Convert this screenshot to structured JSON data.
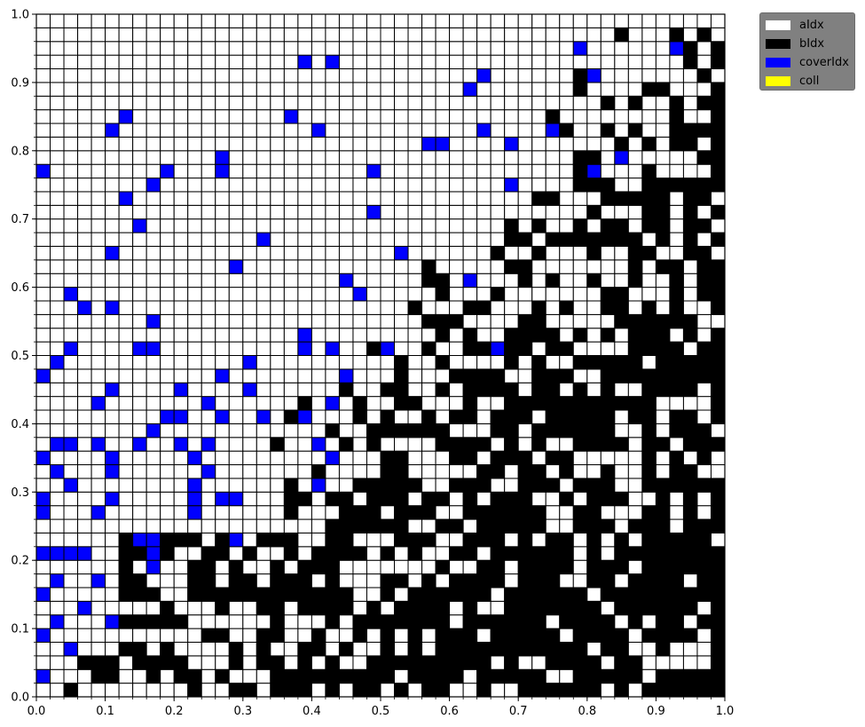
{
  "chart_data": {
    "type": "heatmap",
    "title": "",
    "xlabel": "",
    "ylabel": "",
    "xlim": [
      0,
      1
    ],
    "ylim": [
      0,
      1
    ],
    "grid_size": 50,
    "x_ticks": [
      "0.0",
      "0.1",
      "0.2",
      "0.3",
      "0.4",
      "0.5",
      "0.6",
      "0.7",
      "0.8",
      "0.9",
      "1.0"
    ],
    "y_ticks": [
      "0.0",
      "0.1",
      "0.2",
      "0.3",
      "0.4",
      "0.5",
      "0.6",
      "0.7",
      "0.8",
      "0.9",
      "1.0"
    ],
    "legend_position": "upper-right outside",
    "categories": [
      {
        "key": "a",
        "label": "aIdx",
        "color": "#ffffff"
      },
      {
        "key": "b",
        "label": "bIdx",
        "color": "#000000"
      },
      {
        "key": "c",
        "label": "coverIdx",
        "color": "#0000ff"
      },
      {
        "key": "y",
        "label": "coll",
        "color": "#ffff00"
      }
    ],
    "grid_legend": "rows listed top (y=0.98) to bottom (y=0.0); columns left (x=0.0) to right; '.'=aIdx, '#'=bIdx, 'c'=coverIdx",
    "grid": [
      "..................................................",
      ".......................................c.........c.#",
      "................................................#.#.",
      "........................c..c.................c.....#",
      "......................................c...........c.#",
      "..................................c.............####",
      "............................................#.####...",
      "..........................................##",
      "........c...........c...........................c#....",
      "...................................c.....c.c.....#....",
      ".........................cc..............c.#.#...#",
      ".......................................##.#.##",
      "...........................................c##.#.#",
      "..................................##.##.#.#.#.##",
      "........#.........c.........c..........#.#.##.##",
      ".............................#.........#.##...#",
      "..........c......................................",
      "...........c............c..............#.##.##.#",
      "......c..............................#.#.##.#..",
      "..........c.............................##.#.###",
      ".............................#.####.#.###.##",
      ".............c........c......................",
      "...................c.......c...............",
      "..............c.....................#.##.#.#",
      "...........................c...........",
      ".........................................",
      "............c.........c......c.........##",
      "..........................##",
      "....c.c...................c....",
      "...........................c...",
      "..c...........................",
      "...........................",
      ".....................c.......",
      "...c.......................",
      "....c......................",
      "..........................",
      "......................",
      "...........................",
      "..........c.........",
      "......................",
      ".........c.........",
      "...........c......",
      ".................",
      "................",
      "...............",
      "..............",
      ".............",
      "............",
      "...........",
      ".........."
    ],
    "blue_cells": [
      [
        0.01,
        0.77
      ],
      [
        0.01,
        0.47
      ],
      [
        0.01,
        0.35
      ],
      [
        0.01,
        0.29
      ],
      [
        0.01,
        0.27
      ],
      [
        0.01,
        0.21
      ],
      [
        0.01,
        0.15
      ],
      [
        0.01,
        0.09
      ],
      [
        0.01,
        0.03
      ],
      [
        0.03,
        0.49
      ],
      [
        0.03,
        0.37
      ],
      [
        0.03,
        0.33
      ],
      [
        0.03,
        0.21
      ],
      [
        0.03,
        0.17
      ],
      [
        0.03,
        0.11
      ],
      [
        0.05,
        0.59
      ],
      [
        0.05,
        0.51
      ],
      [
        0.05,
        0.37
      ],
      [
        0.05,
        0.31
      ],
      [
        0.05,
        0.21
      ],
      [
        0.05,
        0.07
      ],
      [
        0.07,
        0.57
      ],
      [
        0.07,
        0.21
      ],
      [
        0.07,
        0.13
      ],
      [
        0.09,
        0.43
      ],
      [
        0.09,
        0.37
      ],
      [
        0.09,
        0.27
      ],
      [
        0.09,
        0.17
      ],
      [
        0.11,
        0.83
      ],
      [
        0.11,
        0.65
      ],
      [
        0.11,
        0.57
      ],
      [
        0.11,
        0.45
      ],
      [
        0.11,
        0.35
      ],
      [
        0.11,
        0.33
      ],
      [
        0.11,
        0.29
      ],
      [
        0.11,
        0.11
      ],
      [
        0.13,
        0.85
      ],
      [
        0.13,
        0.73
      ],
      [
        0.15,
        0.69
      ],
      [
        0.15,
        0.51
      ],
      [
        0.15,
        0.37
      ],
      [
        0.15,
        0.23
      ],
      [
        0.17,
        0.75
      ],
      [
        0.17,
        0.55
      ],
      [
        0.17,
        0.51
      ],
      [
        0.17,
        0.39
      ],
      [
        0.17,
        0.23
      ],
      [
        0.17,
        0.21
      ],
      [
        0.17,
        0.19
      ],
      [
        0.19,
        0.77
      ],
      [
        0.19,
        0.41
      ],
      [
        0.21,
        0.45
      ],
      [
        0.21,
        0.41
      ],
      [
        0.21,
        0.37
      ],
      [
        0.23,
        0.35
      ],
      [
        0.23,
        0.31
      ],
      [
        0.23,
        0.29
      ],
      [
        0.23,
        0.27
      ],
      [
        0.25,
        0.43
      ],
      [
        0.25,
        0.37
      ],
      [
        0.25,
        0.33
      ],
      [
        0.27,
        0.79
      ],
      [
        0.27,
        0.77
      ],
      [
        0.27,
        0.47
      ],
      [
        0.27,
        0.41
      ],
      [
        0.27,
        0.29
      ],
      [
        0.29,
        0.63
      ],
      [
        0.29,
        0.29
      ],
      [
        0.29,
        0.23
      ],
      [
        0.31,
        0.49
      ],
      [
        0.31,
        0.45
      ],
      [
        0.33,
        0.67
      ],
      [
        0.33,
        0.41
      ],
      [
        0.37,
        0.85
      ],
      [
        0.39,
        0.93
      ],
      [
        0.39,
        0.53
      ],
      [
        0.39,
        0.51
      ],
      [
        0.39,
        0.41
      ],
      [
        0.41,
        0.83
      ],
      [
        0.41,
        0.37
      ],
      [
        0.41,
        0.31
      ],
      [
        0.43,
        0.93
      ],
      [
        0.43,
        0.51
      ],
      [
        0.43,
        0.43
      ],
      [
        0.43,
        0.35
      ],
      [
        0.45,
        0.61
      ],
      [
        0.45,
        0.47
      ],
      [
        0.47,
        0.59
      ],
      [
        0.49,
        0.77
      ],
      [
        0.49,
        0.71
      ],
      [
        0.51,
        0.51
      ],
      [
        0.53,
        0.65
      ],
      [
        0.57,
        0.81
      ],
      [
        0.59,
        0.81
      ],
      [
        0.63,
        0.89
      ],
      [
        0.63,
        0.61
      ],
      [
        0.65,
        0.91
      ],
      [
        0.65,
        0.83
      ],
      [
        0.67,
        0.51
      ],
      [
        0.69,
        0.81
      ],
      [
        0.69,
        0.75
      ],
      [
        0.75,
        0.83
      ],
      [
        0.79,
        0.95
      ],
      [
        0.81,
        0.91
      ],
      [
        0.81,
        0.77
      ],
      [
        0.85,
        0.79
      ],
      [
        0.93,
        0.95
      ]
    ]
  }
}
